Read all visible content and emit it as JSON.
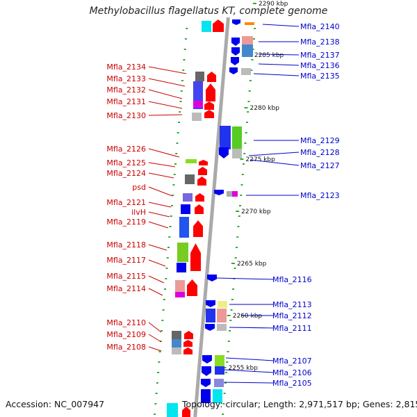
{
  "title": "Methylobacillus flagellatus KT, complete genome",
  "footer": {
    "accession": "Accession: NC_007947",
    "topology": "Topology: circular; Length: 2,971,517 bp; Genes: 2,815"
  },
  "colors": {
    "backbone": "#aaaaaa",
    "forward_label": "#cc0000",
    "reverse_label": "#0000cc",
    "forward_gene": "#ff0000",
    "reverse_gene": "#0000ee",
    "tick": "#33aa33"
  },
  "scale_labels": [
    {
      "text": "2290 kbp",
      "kbp": 2290
    },
    {
      "text": "2285 kbp",
      "kbp": 2285
    },
    {
      "text": "2280 kbp",
      "kbp": 2280
    },
    {
      "text": "2275 kbp",
      "kbp": 2275
    },
    {
      "text": "2270 kbp",
      "kbp": 2270
    },
    {
      "text": "2265 kbp",
      "kbp": 2265
    },
    {
      "text": "2260 kbp",
      "kbp": 2260
    },
    {
      "text": "2255 kbp",
      "kbp": 2255
    }
  ],
  "left_genes": [
    "Mfla_2134",
    "Mfla_2133",
    "Mfla_2132",
    "Mfla_2131",
    "Mfla_2130",
    "Mfla_2126",
    "Mfla_2125",
    "Mfla_2124",
    "psd",
    "Mfla_2121",
    "ilvH",
    "Mfla_2119",
    "Mfla_2118",
    "Mfla_2117",
    "Mfla_2115",
    "Mfla_2114",
    "Mfla_2110",
    "Mfla_2109",
    "Mfla_2108"
  ],
  "right_genes": [
    "Mfla_2140",
    "Mfla_2138",
    "Mfla_2137",
    "Mfla_2136",
    "Mfla_2135",
    "Mfla_2129",
    "Mfla_2128",
    "Mfla_2127",
    "Mfla_2123",
    "Mfla_2116",
    "Mfla_2113",
    "Mfla_2112",
    "Mfla_2111",
    "Mfla_2107",
    "Mfla_2106",
    "Mfla_2105"
  ]
}
